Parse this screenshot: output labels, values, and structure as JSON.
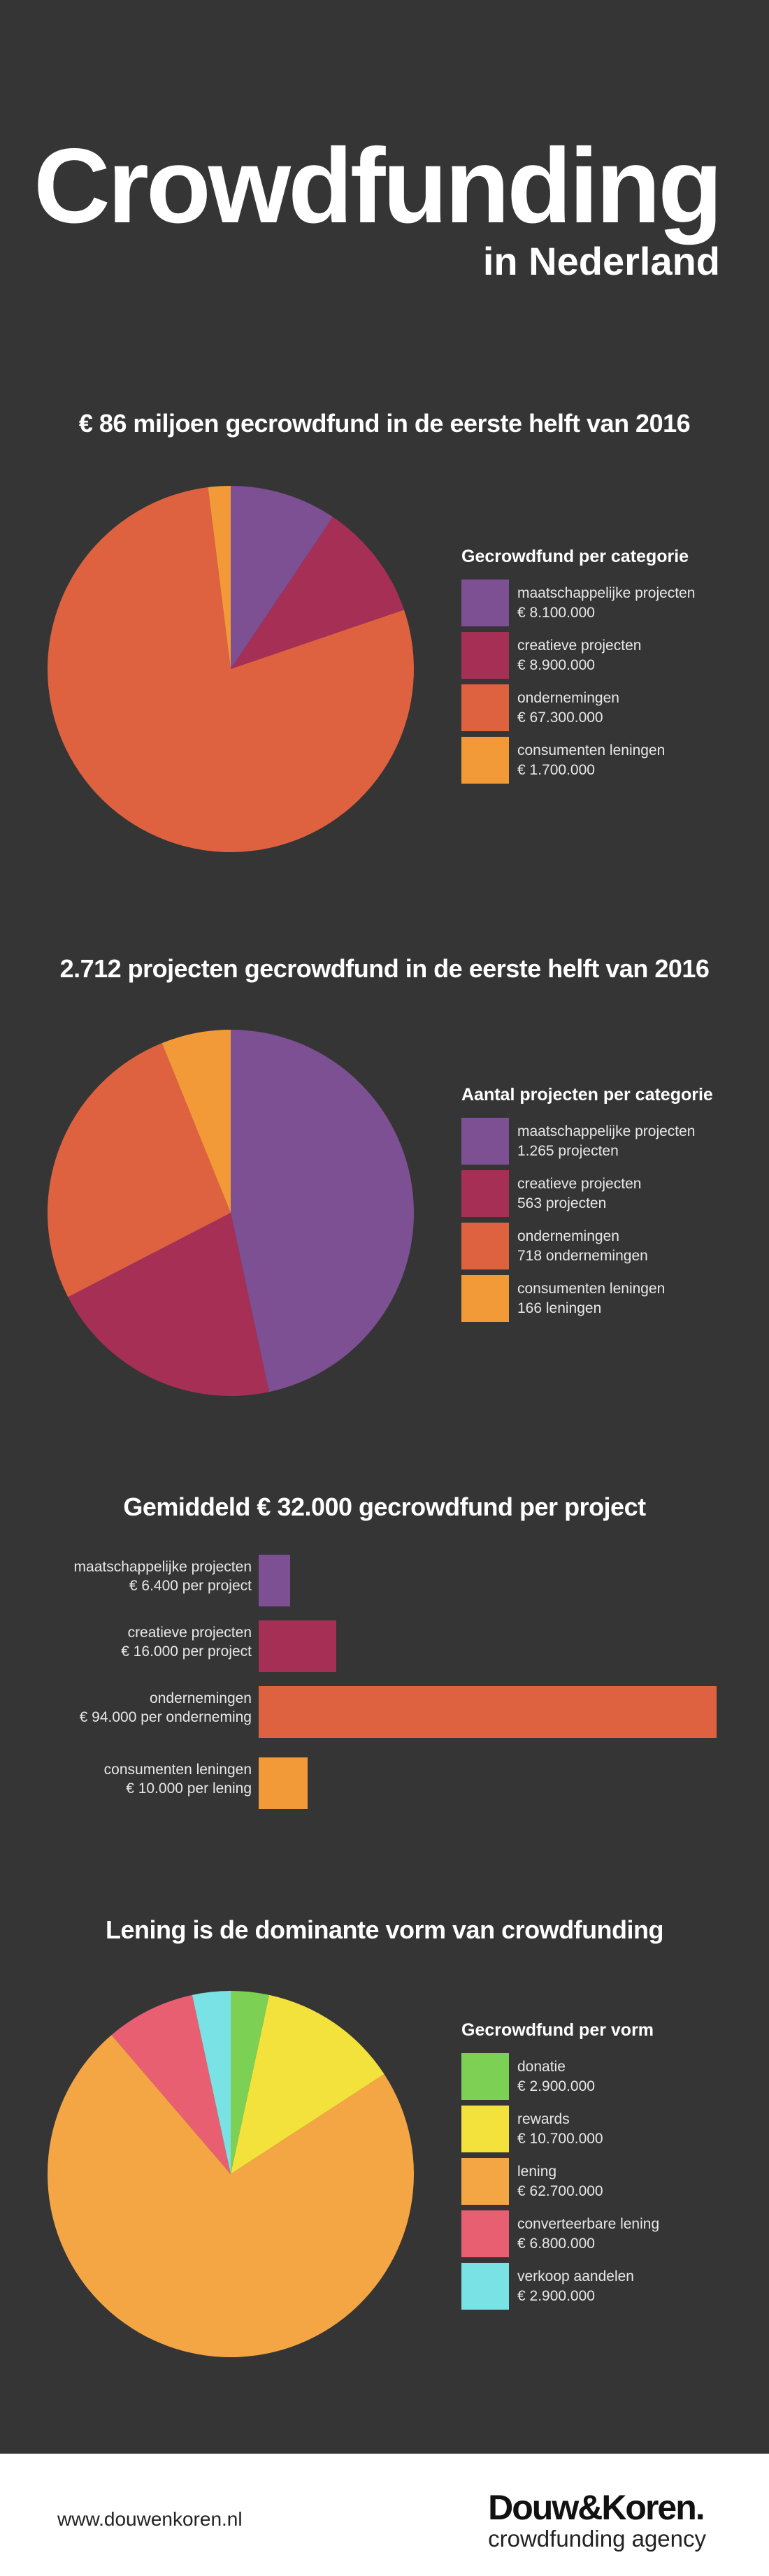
{
  "header": {
    "title": "Crowdfunding",
    "subtitle": "in Nederland"
  },
  "colors": {
    "purple": "#7d4f93",
    "crimson": "#a52f55",
    "orange_red": "#de6240",
    "orange": "#f29a37",
    "green": "#7cd154",
    "yellow": "#f3e23b",
    "light_orange": "#f4a645",
    "pink": "#e95f72",
    "cyan": "#78e2e5"
  },
  "footer": {
    "url": "www.douwenkoren.nl",
    "brand": "Douw&Koren.",
    "tagline": "crowdfunding agency"
  },
  "chart_data": [
    {
      "type": "pie",
      "title": "€ 86 miljoen gecrowdfund in de eerste helft van 2016",
      "legend_title": "Gecrowdfund per categorie",
      "slices": [
        {
          "label": "maatschappelijke projecten",
          "value_label": "€ 8.100.000",
          "value": 8100000,
          "color": "#7d4f93"
        },
        {
          "label": "creatieve projecten",
          "value_label": "€ 8.900.000",
          "value": 8900000,
          "color": "#a52f55"
        },
        {
          "label": "ondernemingen",
          "value_label": "€ 67.300.000",
          "value": 67300000,
          "color": "#de6240"
        },
        {
          "label": "consumenten leningen",
          "value_label": "€ 1.700.000",
          "value": 1700000,
          "color": "#f29a37"
        }
      ]
    },
    {
      "type": "pie",
      "title": "2.712 projecten gecrowdfund in de eerste helft van 2016",
      "legend_title": "Aantal projecten per categorie",
      "slices": [
        {
          "label": "maatschappelijke projecten",
          "value_label": "1.265 projecten",
          "value": 1265,
          "color": "#7d4f93"
        },
        {
          "label": "creatieve projecten",
          "value_label": "563 projecten",
          "value": 563,
          "color": "#a52f55"
        },
        {
          "label": "ondernemingen",
          "value_label": "718 ondernemingen",
          "value": 718,
          "color": "#de6240"
        },
        {
          "label": "consumenten leningen",
          "value_label": "166 leningen",
          "value": 166,
          "color": "#f29a37"
        }
      ]
    },
    {
      "type": "bar",
      "title": "Gemiddeld € 32.000 gecrowdfund per project",
      "bars": [
        {
          "label": "maatschappelijke projecten",
          "value_label": "€ 6.400 per project",
          "value": 6400,
          "color": "#7d4f93"
        },
        {
          "label": "creatieve projecten",
          "value_label": "€ 16.000 per project",
          "value": 16000,
          "color": "#a52f55"
        },
        {
          "label": "ondernemingen",
          "value_label": "€ 94.000 per onderneming",
          "value": 94000,
          "color": "#de6240"
        },
        {
          "label": "consumenten leningen",
          "value_label": "€ 10.000 per lening",
          "value": 10000,
          "color": "#f29a37"
        }
      ]
    },
    {
      "type": "pie",
      "title": "Lening is de dominante vorm van crowdfunding",
      "legend_title": "Gecrowdfund per vorm",
      "slices": [
        {
          "label": "donatie",
          "value_label": "€ 2.900.000",
          "value": 2900000,
          "color": "#7cd154"
        },
        {
          "label": "rewards",
          "value_label": "€ 10.700.000",
          "value": 10700000,
          "color": "#f3e23b"
        },
        {
          "label": "lening",
          "value_label": "€ 62.700.000",
          "value": 62700000,
          "color": "#f4a645"
        },
        {
          "label": "converteerbare lening",
          "value_label": "€ 6.800.000",
          "value": 6800000,
          "color": "#e95f72"
        },
        {
          "label": "verkoop aandelen",
          "value_label": "€ 2.900.000",
          "value": 2900000,
          "color": "#78e2e5"
        }
      ]
    }
  ]
}
